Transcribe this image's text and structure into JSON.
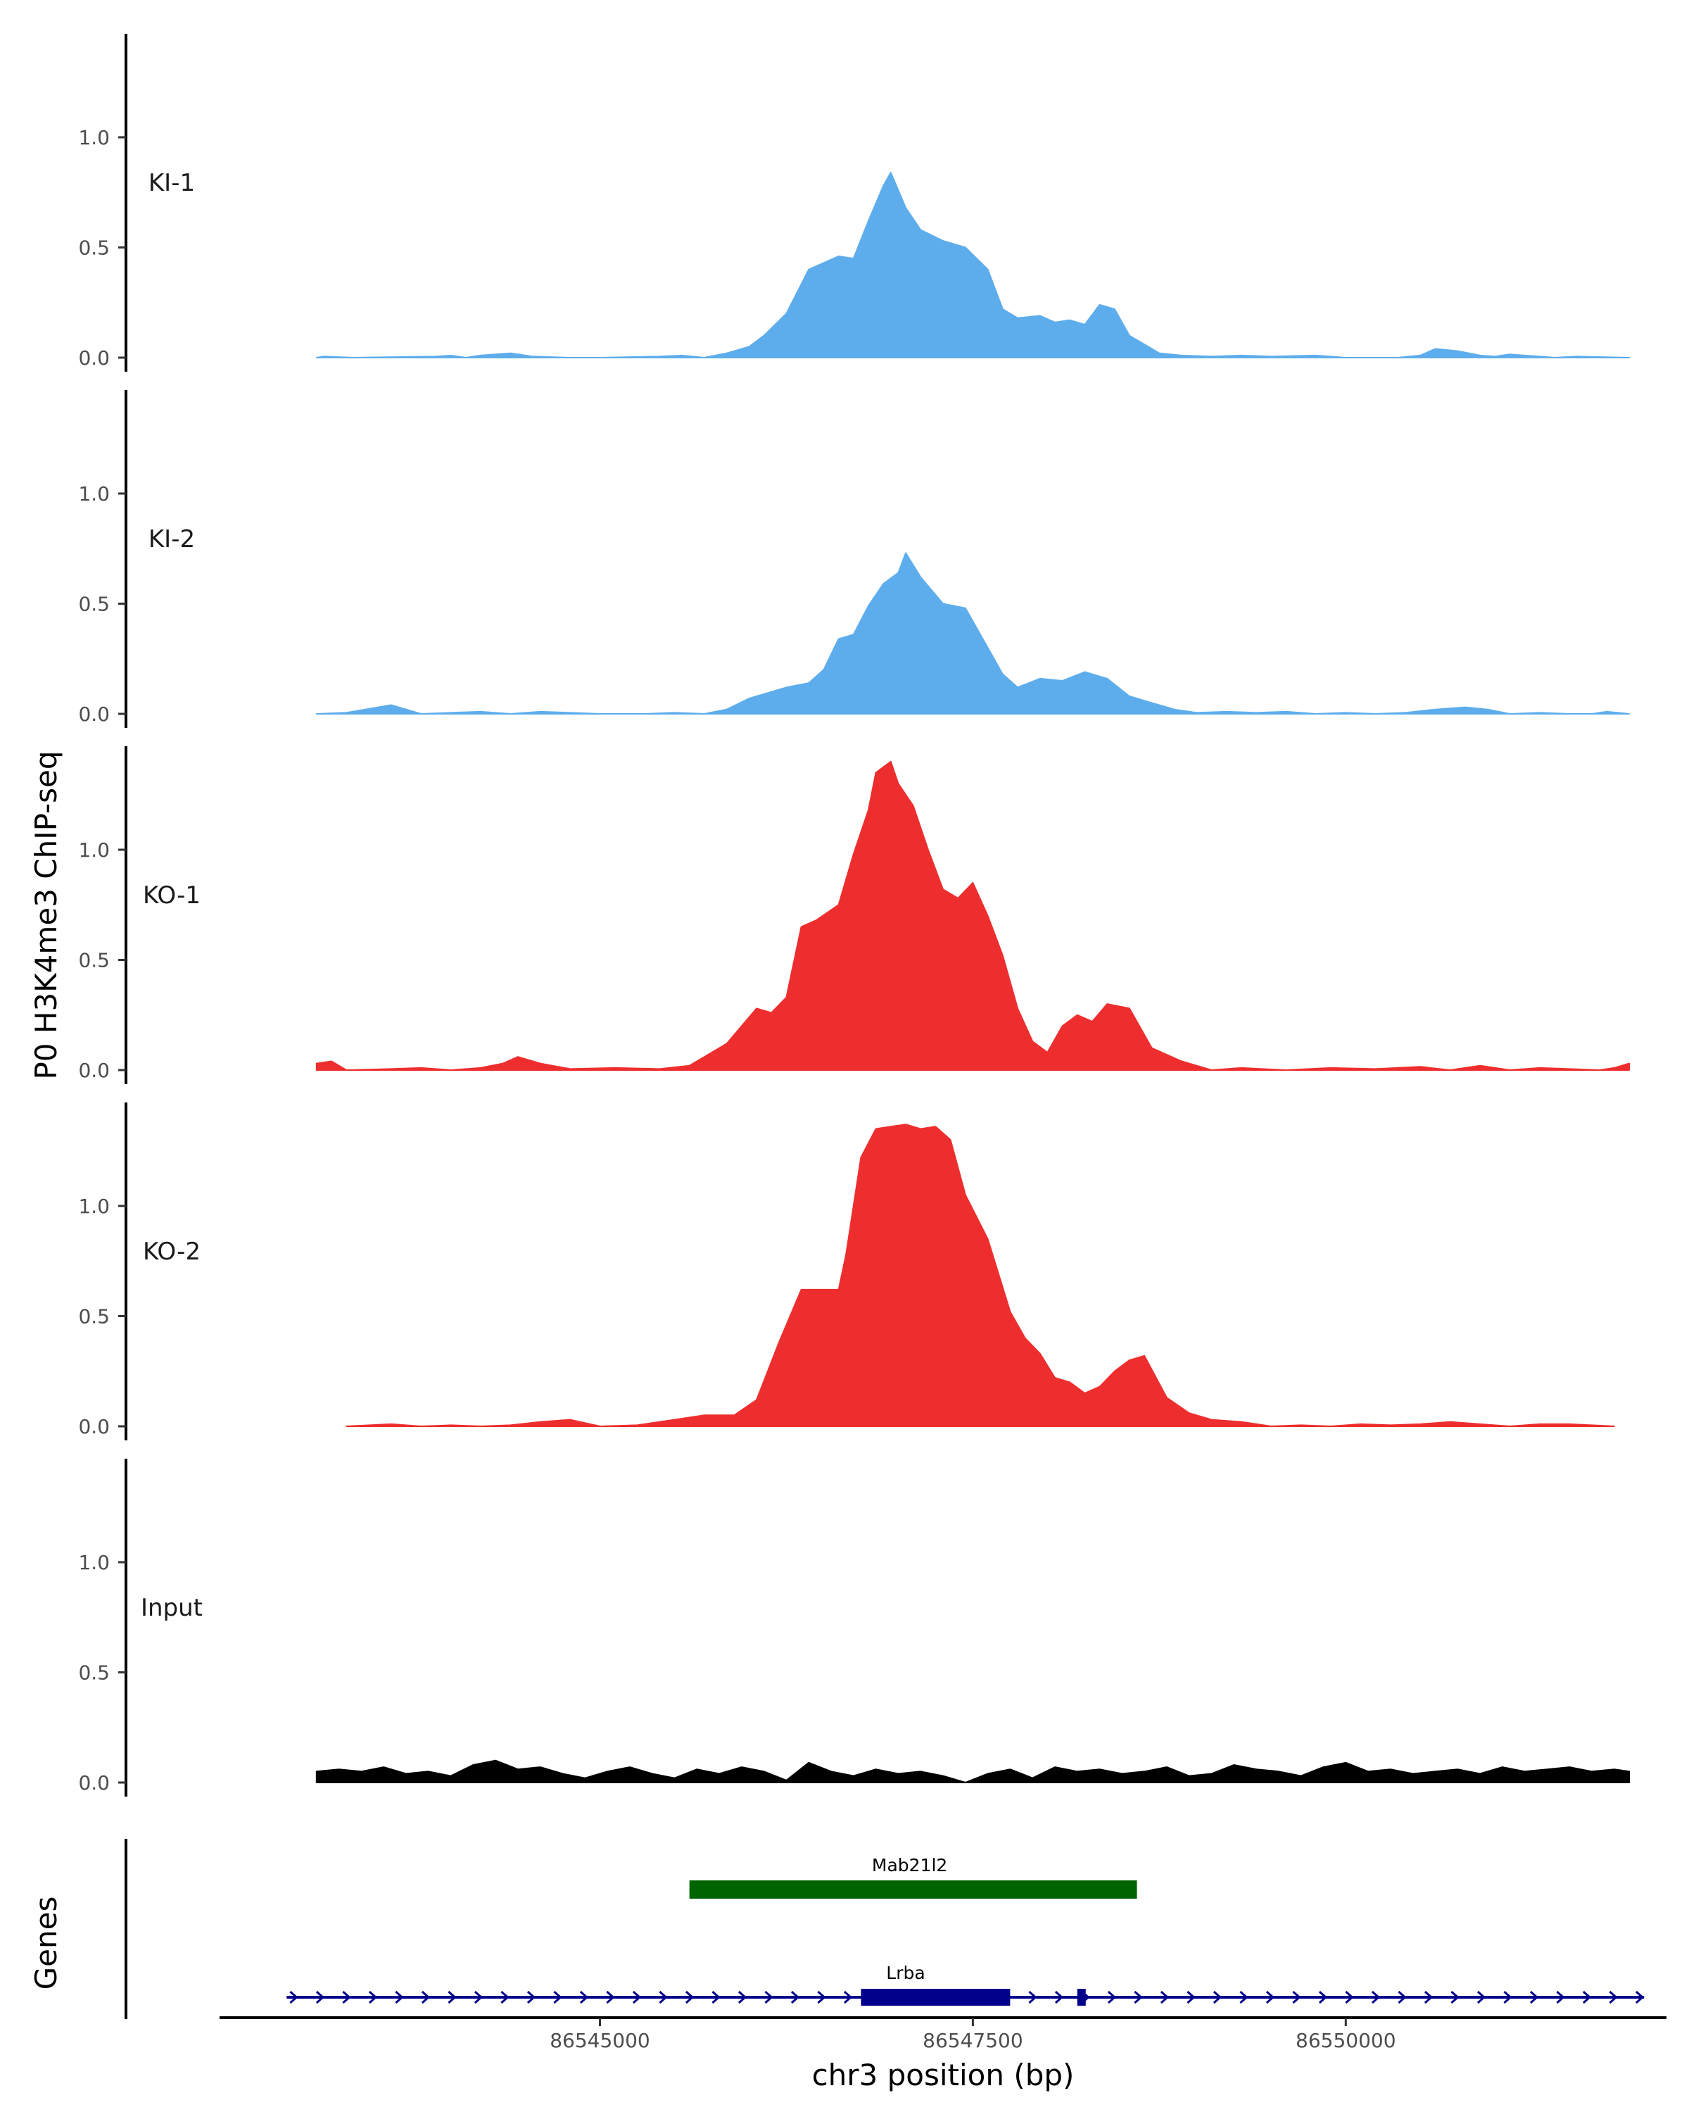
{
  "chart_data": {
    "type": "area",
    "title": "",
    "ylabel": "P0 H3K4me3 ChIP-seq",
    "xlabel": "chr3 position (bp)",
    "genes_label": "Genes",
    "xlim": [
      86542450,
      86552150
    ],
    "ylim": [
      0,
      1.45
    ],
    "x_ticks": [
      86545000,
      86547500,
      86550000
    ],
    "x_tick_labels": [
      "86545000",
      "86547500",
      "86550000"
    ],
    "y_ticks": [
      0.0,
      0.5,
      1.0
    ],
    "y_tick_labels": [
      "0.0",
      "0.5",
      "1.0"
    ],
    "colors": {
      "KI": "#5DADEC",
      "KO": "#EE2E2E",
      "Input": "#000000",
      "Mab21l2": "#006400",
      "Lrba": "#00008B"
    },
    "tracks": [
      {
        "name": "KI-1",
        "color": "#5DADEC",
        "x": [
          86543100,
          86543150,
          86543350,
          86543900,
          86544000,
          86544100,
          86544200,
          86544400,
          86544550,
          86544800,
          86545000,
          86545400,
          86545550,
          86545700,
          86545850,
          86546000,
          86546100,
          86546250,
          86546400,
          86546500,
          86546600,
          86546700,
          86546800,
          86546900,
          86546950,
          86547050,
          86547150,
          86547300,
          86547450,
          86547600,
          86547700,
          86547800,
          86547950,
          86548050,
          86548150,
          86548250,
          86548350,
          86548450,
          86548550,
          86548650,
          86548750,
          86548900,
          86549100,
          86549300,
          86549500,
          86549800,
          86550000,
          86550150,
          86550350,
          86550500,
          86550600,
          86550750,
          86550900,
          86551000,
          86551100,
          86551200,
          86551300,
          86551400,
          86551550,
          86551900
        ],
        "values": [
          0.0,
          0.005,
          0.0,
          0.005,
          0.01,
          0.0,
          0.01,
          0.02,
          0.005,
          0.0,
          0.0,
          0.005,
          0.01,
          0.0,
          0.02,
          0.05,
          0.1,
          0.2,
          0.4,
          0.43,
          0.46,
          0.45,
          0.62,
          0.78,
          0.84,
          0.68,
          0.58,
          0.53,
          0.5,
          0.4,
          0.22,
          0.18,
          0.19,
          0.16,
          0.17,
          0.15,
          0.24,
          0.22,
          0.1,
          0.06,
          0.02,
          0.01,
          0.005,
          0.01,
          0.005,
          0.01,
          0.0,
          0.0,
          0.0,
          0.01,
          0.04,
          0.03,
          0.01,
          0.005,
          0.015,
          0.01,
          0.005,
          0.0,
          0.005,
          0.0
        ]
      },
      {
        "name": "KI-2",
        "color": "#5DADEC",
        "x": [
          86543100,
          86543300,
          86543600,
          86543800,
          86544000,
          86544200,
          86544400,
          86544600,
          86544800,
          86545000,
          86545300,
          86545500,
          86545700,
          86545850,
          86546000,
          86546150,
          86546250,
          86546400,
          86546500,
          86546600,
          86546700,
          86546800,
          86546900,
          86547000,
          86547050,
          86547150,
          86547300,
          86547450,
          86547600,
          86547700,
          86547800,
          86547950,
          86548100,
          86548250,
          86548400,
          86548550,
          86548700,
          86548850,
          86549000,
          86549200,
          86549400,
          86549600,
          86549800,
          86550000,
          86550200,
          86550400,
          86550600,
          86550800,
          86550950,
          86551100,
          86551300,
          86551500,
          86551650,
          86551750,
          86551900
        ],
        "values": [
          0.0,
          0.005,
          0.04,
          0.0,
          0.005,
          0.01,
          0.0,
          0.01,
          0.005,
          0.0,
          0.0,
          0.005,
          0.0,
          0.02,
          0.07,
          0.1,
          0.12,
          0.14,
          0.2,
          0.34,
          0.36,
          0.49,
          0.59,
          0.64,
          0.73,
          0.62,
          0.5,
          0.48,
          0.3,
          0.18,
          0.12,
          0.16,
          0.15,
          0.19,
          0.16,
          0.08,
          0.05,
          0.02,
          0.005,
          0.01,
          0.005,
          0.01,
          0.0,
          0.005,
          0.0,
          0.005,
          0.02,
          0.03,
          0.02,
          0.0,
          0.005,
          0.0,
          0.0,
          0.01,
          0.0
        ]
      },
      {
        "name": "KO-1",
        "color": "#EE2E2E",
        "x": [
          86543100,
          86543200,
          86543300,
          86543600,
          86543800,
          86544000,
          86544200,
          86544350,
          86544450,
          86544600,
          86544800,
          86545100,
          86545400,
          86545600,
          86545700,
          86545850,
          86545950,
          86546050,
          86546150,
          86546250,
          86546350,
          86546450,
          86546600,
          86546700,
          86546800,
          86546850,
          86546950,
          86547000,
          86547100,
          86547200,
          86547300,
          86547400,
          86547500,
          86547600,
          86547700,
          86547800,
          86547900,
          86548000,
          86548100,
          86548200,
          86548300,
          86548400,
          86548550,
          86548700,
          86548900,
          86549100,
          86549300,
          86549600,
          86549900,
          86550200,
          86550500,
          86550700,
          86550900,
          86551100,
          86551300,
          86551500,
          86551700,
          86551800,
          86551900
        ],
        "values": [
          0.03,
          0.04,
          0.0,
          0.005,
          0.01,
          0.0,
          0.01,
          0.03,
          0.06,
          0.03,
          0.005,
          0.01,
          0.005,
          0.02,
          0.06,
          0.12,
          0.2,
          0.28,
          0.26,
          0.33,
          0.65,
          0.68,
          0.75,
          0.98,
          1.18,
          1.35,
          1.4,
          1.3,
          1.2,
          1.0,
          0.82,
          0.78,
          0.85,
          0.7,
          0.52,
          0.28,
          0.13,
          0.08,
          0.2,
          0.25,
          0.22,
          0.3,
          0.28,
          0.1,
          0.04,
          0.0,
          0.01,
          0.0,
          0.01,
          0.005,
          0.015,
          0.0,
          0.02,
          0.0,
          0.01,
          0.005,
          0.0,
          0.01,
          0.03
        ]
      },
      {
        "name": "KO-2",
        "color": "#EE2E2E",
        "x": [
          86543300,
          86543600,
          86543800,
          86544000,
          86544200,
          86544400,
          86544600,
          86544800,
          86545000,
          86545250,
          86545500,
          86545700,
          86545900,
          86546050,
          86546200,
          86546350,
          86546500,
          86546600,
          86546650,
          86546750,
          86546850,
          86546950,
          86547050,
          86547150,
          86547250,
          86547350,
          86547450,
          86547600,
          86547750,
          86547850,
          86547950,
          86548050,
          86548150,
          86548250,
          86548350,
          86548450,
          86548550,
          86548650,
          86548800,
          86548950,
          86549100,
          86549300,
          86549500,
          86549700,
          86549900,
          86550100,
          86550300,
          86550500,
          86550700,
          86550900,
          86551100,
          86551300,
          86551500,
          86551800
        ],
        "values": [
          0.0,
          0.01,
          0.0,
          0.005,
          0.0,
          0.005,
          0.02,
          0.03,
          0.0,
          0.005,
          0.03,
          0.05,
          0.05,
          0.12,
          0.38,
          0.62,
          0.62,
          0.62,
          0.78,
          1.22,
          1.35,
          1.36,
          1.37,
          1.35,
          1.36,
          1.3,
          1.05,
          0.85,
          0.52,
          0.4,
          0.33,
          0.22,
          0.2,
          0.15,
          0.18,
          0.25,
          0.3,
          0.32,
          0.13,
          0.06,
          0.03,
          0.02,
          0.0,
          0.005,
          0.0,
          0.01,
          0.005,
          0.01,
          0.02,
          0.01,
          0.0,
          0.01,
          0.01,
          0.0
        ]
      },
      {
        "name": "Input",
        "color": "#000000",
        "x": [
          86543100,
          86543250,
          86543400,
          86543550,
          86543700,
          86543850,
          86544000,
          86544150,
          86544300,
          86544450,
          86544600,
          86544750,
          86544900,
          86545050,
          86545200,
          86545350,
          86545500,
          86545650,
          86545800,
          86545950,
          86546100,
          86546250,
          86546400,
          86546550,
          86546700,
          86546850,
          86547000,
          86547150,
          86547300,
          86547450,
          86547600,
          86547750,
          86547900,
          86548050,
          86548200,
          86548350,
          86548500,
          86548650,
          86548800,
          86548950,
          86549100,
          86549250,
          86549400,
          86549550,
          86549700,
          86549850,
          86550000,
          86550150,
          86550300,
          86550450,
          86550600,
          86550750,
          86550900,
          86551050,
          86551200,
          86551350,
          86551500,
          86551650,
          86551800,
          86551900
        ],
        "values": [
          0.05,
          0.06,
          0.05,
          0.07,
          0.04,
          0.05,
          0.03,
          0.08,
          0.1,
          0.06,
          0.07,
          0.04,
          0.02,
          0.05,
          0.07,
          0.04,
          0.02,
          0.06,
          0.04,
          0.07,
          0.05,
          0.01,
          0.09,
          0.05,
          0.03,
          0.06,
          0.04,
          0.05,
          0.03,
          0.0,
          0.04,
          0.06,
          0.02,
          0.07,
          0.05,
          0.06,
          0.04,
          0.05,
          0.07,
          0.03,
          0.04,
          0.08,
          0.06,
          0.05,
          0.03,
          0.07,
          0.09,
          0.05,
          0.06,
          0.04,
          0.05,
          0.06,
          0.04,
          0.07,
          0.05,
          0.06,
          0.07,
          0.05,
          0.06,
          0.05
        ]
      }
    ],
    "genes": [
      {
        "name": "Mab21l2",
        "start": 86545600,
        "end": 86548600,
        "strand": "+",
        "color": "#006400",
        "exons": [
          [
            86545600,
            86548600
          ]
        ]
      },
      {
        "name": "Lrba",
        "start": 86542900,
        "end": 86552000,
        "strand": "+",
        "color": "#00008B",
        "exons": [
          [
            86546750,
            86547750
          ],
          [
            86548200,
            86548250
          ]
        ]
      }
    ]
  }
}
